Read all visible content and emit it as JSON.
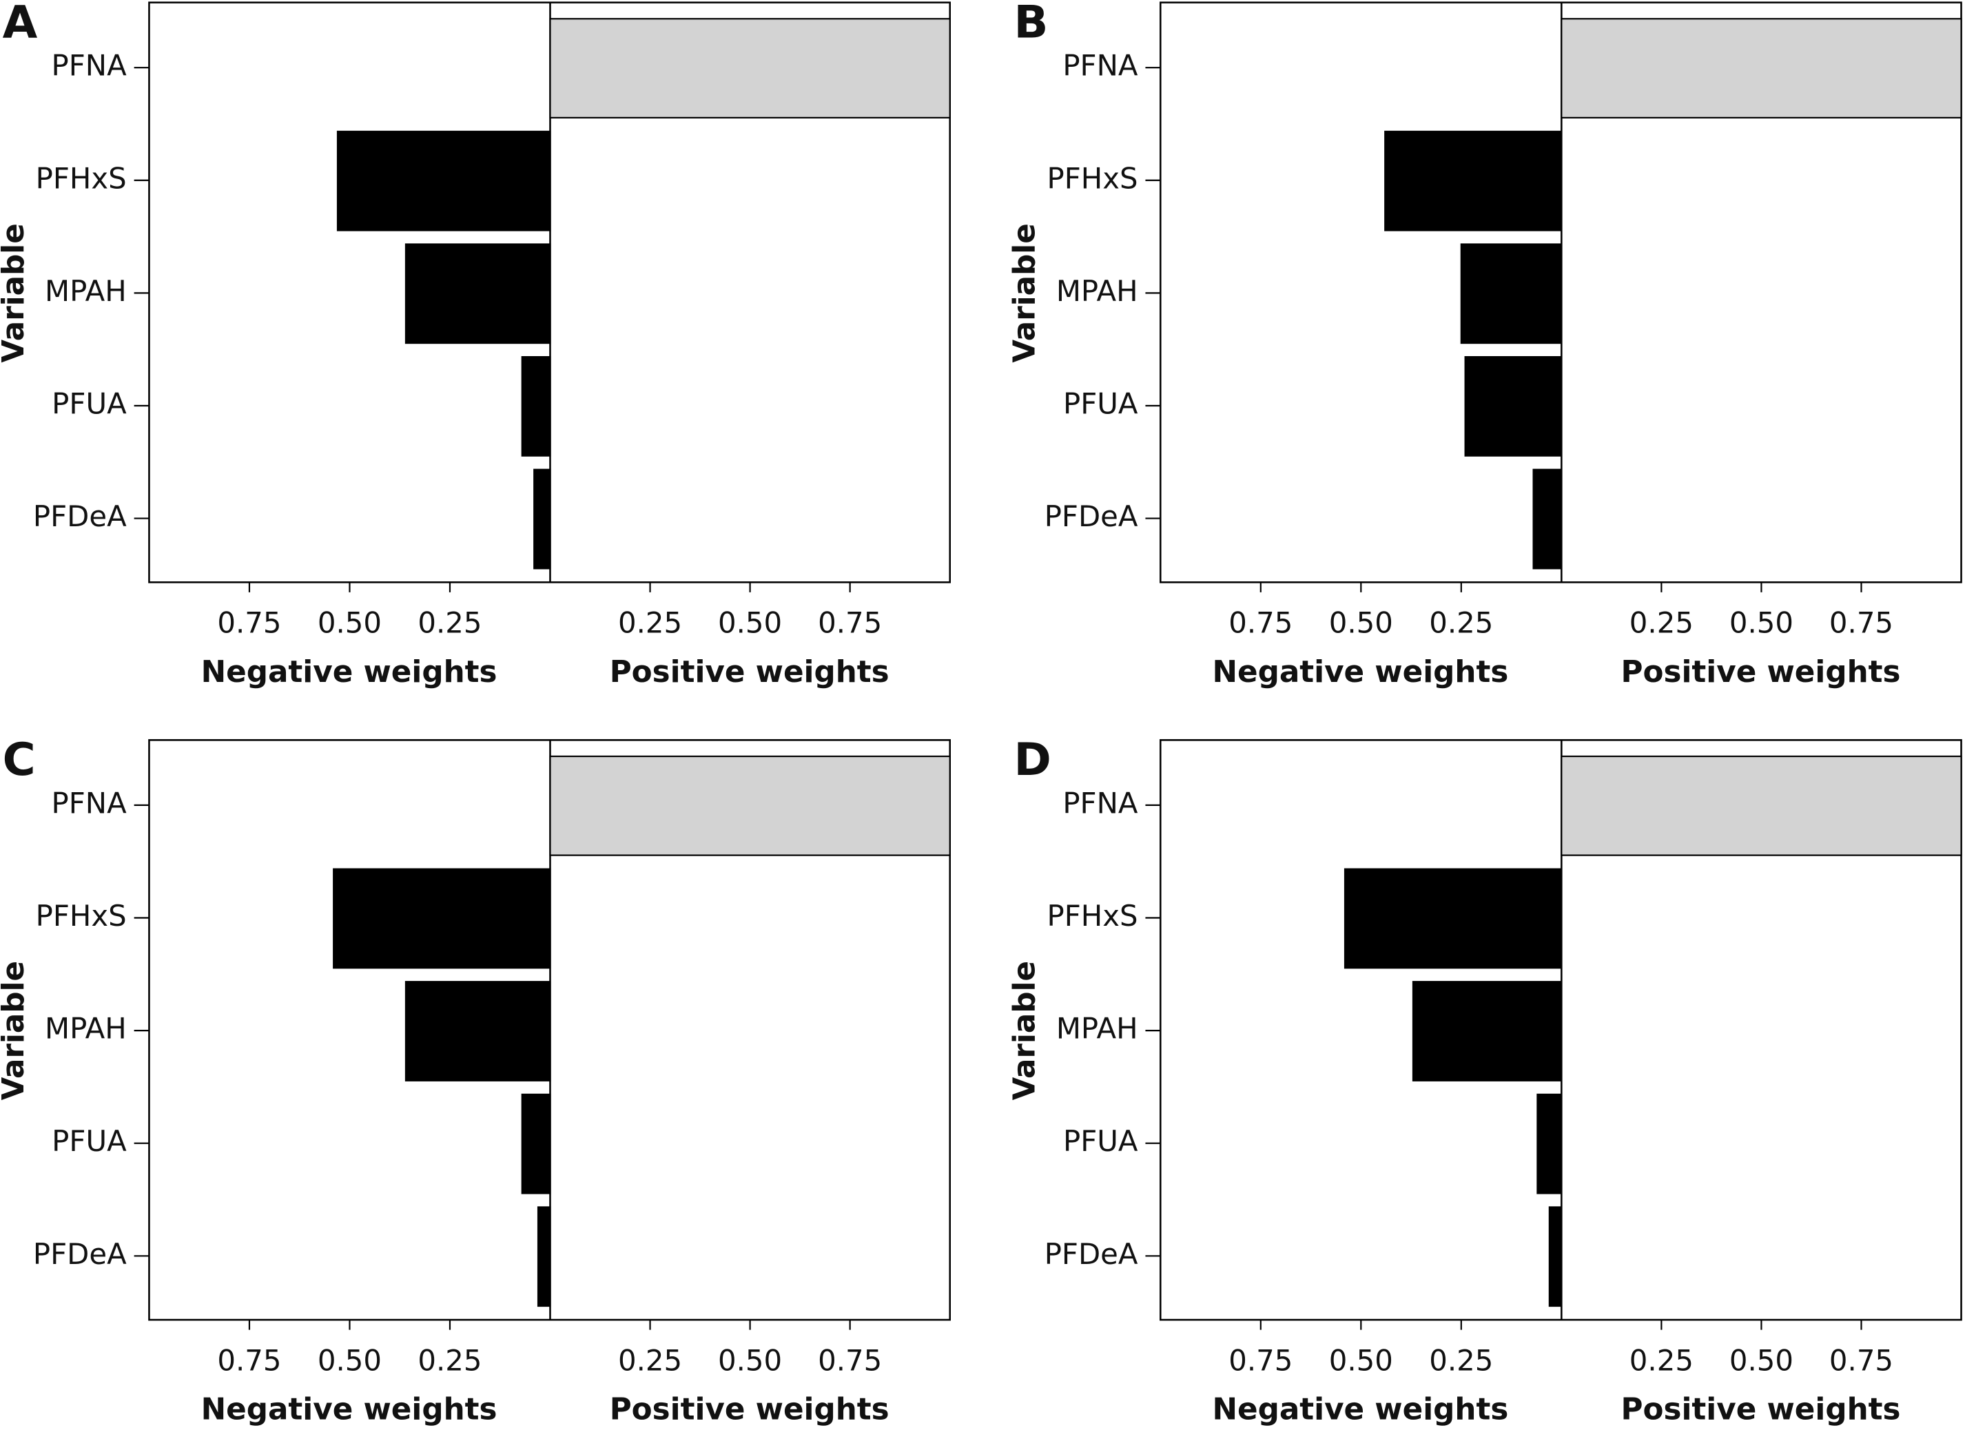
{
  "chart_data": [
    {
      "type": "diverging-bar",
      "panel": "A",
      "y_label": "Variable",
      "categories": [
        "PFNA",
        "PFHxS",
        "MPAH",
        "PFUA",
        "PFDeA"
      ],
      "negative": {
        "title": "Negative weights",
        "color": "#000000",
        "values": [
          null,
          0.53,
          0.36,
          0.07,
          0.04
        ],
        "xlim": [
          1,
          0
        ],
        "xticks": [
          0.75,
          {
            "value": 0.5,
            "label": "0.50"
          },
          0.25
        ]
      },
      "positive": {
        "title": "Positive weights",
        "color": "#d3d3d3",
        "values": [
          1.0,
          null,
          null,
          null,
          null
        ],
        "xlim": [
          0,
          1
        ],
        "xticks": [
          0.25,
          {
            "value": 0.5,
            "label": "0.50"
          },
          0.75
        ]
      }
    },
    {
      "type": "diverging-bar",
      "panel": "B",
      "y_label": "Variable",
      "categories": [
        "PFNA",
        "PFHxS",
        "MPAH",
        "PFUA",
        "PFDeA"
      ],
      "negative": {
        "title": "Negative weights",
        "color": "#000000",
        "values": [
          null,
          0.44,
          0.25,
          0.24,
          0.07
        ],
        "xlim": [
          1,
          0
        ],
        "xticks": [
          0.75,
          {
            "value": 0.5,
            "label": "0.50"
          },
          0.25
        ]
      },
      "positive": {
        "title": "Positive weights",
        "color": "#d3d3d3",
        "values": [
          1.0,
          null,
          null,
          null,
          null
        ],
        "xlim": [
          0,
          1
        ],
        "xticks": [
          0.25,
          {
            "value": 0.5,
            "label": "0.50"
          },
          0.75
        ]
      }
    },
    {
      "type": "diverging-bar",
      "panel": "C",
      "y_label": "Variable",
      "categories": [
        "PFNA",
        "PFHxS",
        "MPAH",
        "PFUA",
        "PFDeA"
      ],
      "negative": {
        "title": "Negative weights",
        "color": "#000000",
        "values": [
          null,
          0.54,
          0.36,
          0.07,
          0.03
        ],
        "xlim": [
          1,
          0
        ],
        "xticks": [
          0.75,
          {
            "value": 0.5,
            "label": "0.50"
          },
          0.25
        ]
      },
      "positive": {
        "title": "Positive weights",
        "color": "#d3d3d3",
        "values": [
          1.0,
          null,
          null,
          null,
          null
        ],
        "xlim": [
          0,
          1
        ],
        "xticks": [
          0.25,
          {
            "value": 0.5,
            "label": "0.50"
          },
          0.75
        ]
      }
    },
    {
      "type": "diverging-bar",
      "panel": "D",
      "y_label": "Variable",
      "categories": [
        "PFNA",
        "PFHxS",
        "MPAH",
        "PFUA",
        "PFDeA"
      ],
      "negative": {
        "title": "Negative weights",
        "color": "#000000",
        "values": [
          null,
          0.54,
          0.37,
          0.06,
          0.03
        ],
        "xlim": [
          1,
          0
        ],
        "xticks": [
          0.75,
          {
            "value": 0.5,
            "label": "0.50"
          },
          0.25
        ]
      },
      "positive": {
        "title": "Positive weights",
        "color": "#d3d3d3",
        "values": [
          1.0,
          null,
          null,
          null,
          null
        ],
        "xlim": [
          0,
          1
        ],
        "xticks": [
          0.25,
          {
            "value": 0.5,
            "label": "0.50"
          },
          0.75
        ]
      }
    }
  ]
}
